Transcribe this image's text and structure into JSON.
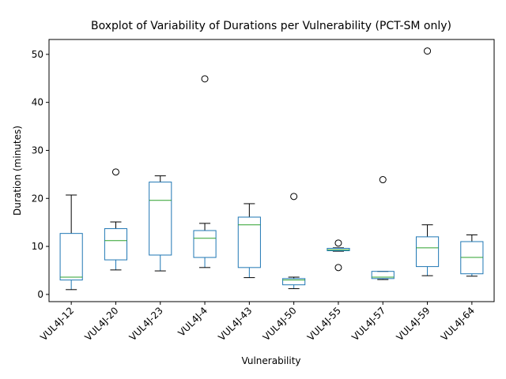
{
  "chart_data": {
    "type": "box",
    "title": "Boxplot of Variability of Durations per Vulnerability (PCT-SM only)",
    "x_label": "Vulnerability",
    "y_label": "Duration (minutes)",
    "categories": [
      "VUL4J-12",
      "VUL4J-20",
      "VUL4J-23",
      "VUL4J-4",
      "VUL4J-43",
      "VUL4J-50",
      "VUL4J-55",
      "VUL4J-57",
      "VUL4J-59",
      "VUL4J-64"
    ],
    "boxes": [
      {
        "whislo": 1.0,
        "q1": 3.0,
        "med": 3.6,
        "q3": 12.7,
        "whishi": 20.7,
        "fliers": []
      },
      {
        "whislo": 5.1,
        "q1": 7.2,
        "med": 11.2,
        "q3": 13.7,
        "whishi": 15.1,
        "fliers": [
          25.5
        ]
      },
      {
        "whislo": 4.9,
        "q1": 8.2,
        "med": 19.6,
        "q3": 23.4,
        "whishi": 24.7,
        "fliers": []
      },
      {
        "whislo": 5.6,
        "q1": 7.7,
        "med": 11.7,
        "q3": 13.3,
        "whishi": 14.8,
        "fliers": [
          44.9
        ]
      },
      {
        "whislo": 3.5,
        "q1": 5.6,
        "med": 14.5,
        "q3": 16.1,
        "whishi": 18.9,
        "fliers": []
      },
      {
        "whislo": 1.2,
        "q1": 2.0,
        "med": 3.0,
        "q3": 3.3,
        "whishi": 3.6,
        "fliers": [
          20.4
        ]
      },
      {
        "whislo": 9.0,
        "q1": 9.1,
        "med": 9.3,
        "q3": 9.6,
        "whishi": 9.7,
        "fliers": [
          10.7,
          5.6
        ]
      },
      {
        "whislo": 3.1,
        "q1": 3.3,
        "med": 3.6,
        "q3": 4.8,
        "whishi": 4.8,
        "fliers": [
          23.9
        ]
      },
      {
        "whislo": 3.9,
        "q1": 5.8,
        "med": 9.7,
        "q3": 12.0,
        "whishi": 14.5,
        "fliers": [
          50.7
        ]
      },
      {
        "whislo": 3.8,
        "q1": 4.3,
        "med": 7.7,
        "q3": 11.0,
        "whishi": 12.4,
        "fliers": []
      }
    ],
    "box_color": "#1f77b4",
    "median_color": "#2ca02c",
    "ylim": [
      -1.5,
      53.1
    ],
    "yticks": [
      0,
      10,
      20,
      30,
      40,
      50
    ],
    "grid": false
  }
}
